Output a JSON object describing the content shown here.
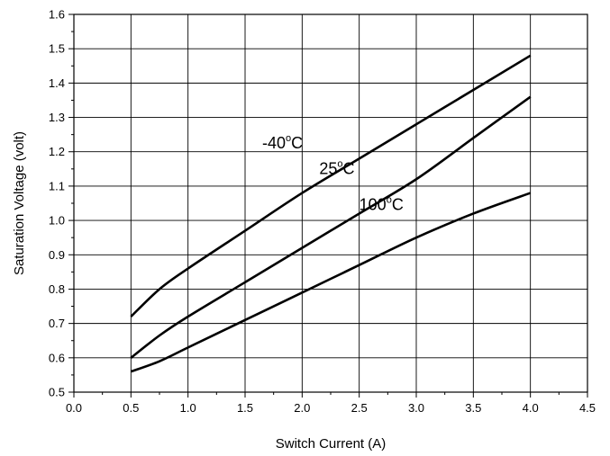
{
  "chart_data": {
    "type": "line",
    "title": "",
    "xlabel": "Switch Current (A)",
    "ylabel": "Saturation Voltage (volt)",
    "xlim": [
      0.0,
      4.5
    ],
    "ylim": [
      0.5,
      1.6
    ],
    "grid": true,
    "legend": "none",
    "xticks": [
      "0.0",
      "0.5",
      "1.0",
      "1.5",
      "2.0",
      "2.5",
      "3.0",
      "3.5",
      "4.0",
      "4.5"
    ],
    "yticks": [
      "0.5",
      "0.6",
      "0.7",
      "0.8",
      "0.9",
      "1.0",
      "1.1",
      "1.2",
      "1.3",
      "1.4",
      "1.5",
      "1.6"
    ],
    "series": [
      {
        "name": "-40°C",
        "x": [
          0.5,
          0.75,
          1.0,
          1.5,
          2.0,
          2.5,
          3.0,
          3.5,
          4.0
        ],
        "y": [
          0.72,
          0.8,
          0.86,
          0.97,
          1.08,
          1.18,
          1.28,
          1.38,
          1.48
        ]
      },
      {
        "name": "25°C",
        "x": [
          0.5,
          0.75,
          1.0,
          1.5,
          2.0,
          2.5,
          3.0,
          3.5,
          4.0
        ],
        "y": [
          0.6,
          0.665,
          0.72,
          0.82,
          0.92,
          1.02,
          1.12,
          1.24,
          1.36
        ]
      },
      {
        "name": "100°C",
        "x": [
          0.5,
          0.75,
          1.0,
          1.5,
          2.0,
          2.5,
          3.0,
          3.5,
          4.0
        ],
        "y": [
          0.56,
          0.59,
          0.63,
          0.71,
          0.79,
          0.87,
          0.95,
          1.02,
          1.08
        ]
      }
    ],
    "annotations": [
      {
        "base": "-40",
        "sup": "o",
        "unit": "C",
        "series": "-40°C",
        "x": 1.65,
        "y": 1.21
      },
      {
        "base": "25",
        "sup": "o",
        "unit": "C",
        "series": "25°C",
        "x": 2.15,
        "y": 1.135
      },
      {
        "base": "100",
        "sup": "o",
        "unit": "C",
        "series": "100°C",
        "x": 2.5,
        "y": 1.03
      }
    ]
  }
}
